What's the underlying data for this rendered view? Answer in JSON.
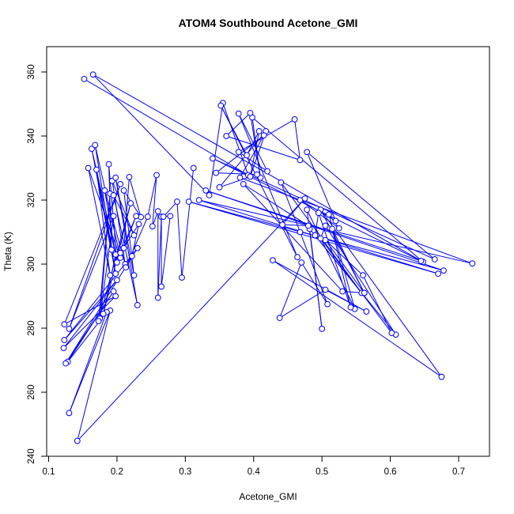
{
  "chart_data": {
    "type": "line",
    "title": "ATOM4 Southbound Acetone_GMI",
    "xlabel": "Acetone_GMI",
    "ylabel": "Theta (K)",
    "xlim": [
      0.1,
      0.72
    ],
    "ylim": [
      240,
      362
    ],
    "x_ticks": [
      0.1,
      0.2,
      0.3,
      0.4,
      0.5,
      0.6,
      0.7
    ],
    "x_tick_labels": [
      "0.1",
      "0.2",
      "0.3",
      "0.4",
      "0.5",
      "0.6",
      "0.7"
    ],
    "y_ticks": [
      240,
      260,
      280,
      300,
      320,
      340,
      360
    ],
    "y_tick_labels": [
      "240",
      "260",
      "280",
      "300",
      "320",
      "340",
      "360"
    ],
    "grid": false,
    "legend": "none",
    "series_color": "#0000ff",
    "marker": "open-circle",
    "points": [
      [
        0.152,
        357.8
      ],
      [
        0.392,
        327.8
      ],
      [
        0.355,
        350.3
      ],
      [
        0.335,
        321.5
      ],
      [
        0.165,
        359.2
      ],
      [
        0.648,
        300.7
      ],
      [
        0.398,
        345.8
      ],
      [
        0.41,
        327.0
      ],
      [
        0.395,
        347.2
      ],
      [
        0.36,
        340.0
      ],
      [
        0.468,
        332.5
      ],
      [
        0.46,
        345.2
      ],
      [
        0.378,
        335.0
      ],
      [
        0.42,
        329.0
      ],
      [
        0.378,
        347.0
      ],
      [
        0.464,
        302.2
      ],
      [
        0.352,
        349.5
      ],
      [
        0.39,
        334.0
      ],
      [
        0.408,
        341.5
      ],
      [
        0.395,
        327.3
      ],
      [
        0.418,
        341.5
      ],
      [
        0.35,
        324.0
      ],
      [
        0.405,
        328.0
      ],
      [
        0.345,
        328.5
      ],
      [
        0.415,
        340.2
      ],
      [
        0.38,
        327.0
      ],
      [
        0.72,
        300.2
      ],
      [
        0.32,
        320.0
      ],
      [
        0.67,
        297.0
      ],
      [
        0.305,
        319.5
      ],
      [
        0.678,
        298.0
      ],
      [
        0.33,
        323.0
      ],
      [
        0.645,
        301.0
      ],
      [
        0.34,
        333.0
      ],
      [
        0.665,
        301.5
      ],
      [
        0.478,
        335.0
      ],
      [
        0.52,
        313.5
      ],
      [
        0.468,
        320.0
      ],
      [
        0.525,
        311.2
      ],
      [
        0.51,
        315.5
      ],
      [
        0.548,
        286.0
      ],
      [
        0.478,
        317.0
      ],
      [
        0.5,
        279.8
      ],
      [
        0.482,
        311.0
      ],
      [
        0.608,
        278.0
      ],
      [
        0.505,
        312.0
      ],
      [
        0.498,
        308.0
      ],
      [
        0.602,
        278.5
      ],
      [
        0.56,
        296.5
      ],
      [
        0.505,
        307.5
      ],
      [
        0.562,
        291.0
      ],
      [
        0.498,
        317.0
      ],
      [
        0.675,
        264.8
      ],
      [
        0.428,
        301.2
      ],
      [
        0.565,
        285.2
      ],
      [
        0.505,
        292.0
      ],
      [
        0.438,
        283.2
      ],
      [
        0.47,
        300.5
      ],
      [
        0.508,
        287.5
      ],
      [
        0.468,
        310.0
      ],
      [
        0.44,
        325.5
      ],
      [
        0.558,
        291.0
      ],
      [
        0.49,
        309.0
      ],
      [
        0.495,
        316.0
      ],
      [
        0.542,
        286.5
      ],
      [
        0.515,
        311.0
      ],
      [
        0.562,
        291.0
      ],
      [
        0.53,
        291.5
      ],
      [
        0.385,
        325.0
      ],
      [
        0.48,
        312.0
      ],
      [
        0.442,
        312.3
      ],
      [
        0.475,
        320.5
      ],
      [
        0.142,
        244.8
      ],
      [
        0.19,
        285.5
      ],
      [
        0.13,
        253.5
      ],
      [
        0.185,
        285.0
      ],
      [
        0.128,
        269.5
      ],
      [
        0.195,
        291.5
      ],
      [
        0.125,
        269.0
      ],
      [
        0.23,
        305.0
      ],
      [
        0.123,
        276.3
      ],
      [
        0.2,
        295.0
      ],
      [
        0.122,
        273.8
      ],
      [
        0.198,
        290.0
      ],
      [
        0.123,
        281.2
      ],
      [
        0.205,
        325.0
      ],
      [
        0.13,
        279.8
      ],
      [
        0.195,
        315.0
      ],
      [
        0.175,
        283.0
      ],
      [
        0.19,
        322.0
      ],
      [
        0.173,
        282.2
      ],
      [
        0.22,
        319.0
      ],
      [
        0.18,
        284.5
      ],
      [
        0.198,
        303.0
      ],
      [
        0.163,
        336.0
      ],
      [
        0.198,
        297.0
      ],
      [
        0.168,
        337.2
      ],
      [
        0.205,
        302.0
      ],
      [
        0.158,
        330.0
      ],
      [
        0.19,
        296.5
      ],
      [
        0.17,
        329.5
      ],
      [
        0.192,
        304.5
      ],
      [
        0.188,
        331.2
      ],
      [
        0.2,
        300.5
      ],
      [
        0.182,
        323.0
      ],
      [
        0.212,
        300.0
      ],
      [
        0.193,
        326.0
      ],
      [
        0.225,
        309.0
      ],
      [
        0.195,
        321.5
      ],
      [
        0.23,
        287.2
      ],
      [
        0.198,
        327.0
      ],
      [
        0.225,
        296.5
      ],
      [
        0.21,
        323.0
      ],
      [
        0.235,
        314.7
      ],
      [
        0.218,
        327.2
      ],
      [
        0.21,
        305.0
      ],
      [
        0.228,
        315.0
      ],
      [
        0.205,
        303.5
      ],
      [
        0.232,
        312.5
      ],
      [
        0.222,
        302.5
      ],
      [
        0.213,
        299.0
      ],
      [
        0.245,
        314.8
      ],
      [
        0.258,
        327.8
      ],
      [
        0.252,
        311.8
      ],
      [
        0.26,
        316.5
      ],
      [
        0.26,
        289.5
      ],
      [
        0.265,
        314.8
      ],
      [
        0.265,
        293.0
      ],
      [
        0.278,
        315.0
      ],
      [
        0.268,
        314.8
      ],
      [
        0.288,
        319.5
      ],
      [
        0.295,
        295.8
      ],
      [
        0.312,
        330.0
      ]
    ]
  }
}
